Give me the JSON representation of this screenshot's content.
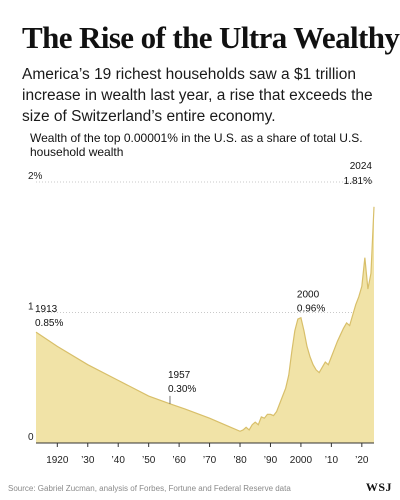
{
  "headline": "The Rise of the Ultra Wealthy",
  "dek": "America’s 19 richest households saw a $1 trillion increase in wealth last year, a rise that exceeds the size of Switzerland’s entire economy.",
  "source": "Source: Gabriel Zucman, analysis of Forbes, Fortune and Federal Reserve data",
  "logo": "WSJ",
  "colors": {
    "area_fill": "#f1e3a7",
    "area_line": "#d8bf6a",
    "grid": "#c9c9c9",
    "axis": "#333333"
  },
  "chart_data": {
    "type": "area",
    "title": "Wealth of the top 0.00001% in the U.S. as a share of total U.S. household wealth",
    "xlabel": "",
    "ylabel": "",
    "xlim": [
      1913,
      2024
    ],
    "ylim": [
      0,
      2
    ],
    "y_ticks": [
      {
        "value": 2,
        "label": "2%"
      },
      {
        "value": 1,
        "label": "1"
      },
      {
        "value": 0,
        "label": "0"
      }
    ],
    "x_ticks": [
      {
        "value": 1920,
        "label": "1920"
      },
      {
        "value": 1930,
        "label": "’30"
      },
      {
        "value": 1940,
        "label": "’40"
      },
      {
        "value": 1950,
        "label": "’50"
      },
      {
        "value": 1960,
        "label": "’60"
      },
      {
        "value": 1970,
        "label": "’70"
      },
      {
        "value": 1980,
        "label": "’80"
      },
      {
        "value": 1990,
        "label": "’90"
      },
      {
        "value": 2000,
        "label": "2000"
      },
      {
        "value": 2010,
        "label": "’10"
      },
      {
        "value": 2020,
        "label": "’20"
      }
    ],
    "x": [
      1913,
      1920,
      1930,
      1940,
      1950,
      1957,
      1962,
      1970,
      1976,
      1980,
      1981,
      1982,
      1983,
      1984,
      1985,
      1986,
      1987,
      1988,
      1989,
      1990,
      1991,
      1992,
      1993,
      1994,
      1995,
      1996,
      1997,
      1998,
      1999,
      2000,
      2001,
      2002,
      2003,
      2004,
      2005,
      2006,
      2007,
      2008,
      2009,
      2010,
      2011,
      2012,
      2013,
      2014,
      2015,
      2016,
      2017,
      2018,
      2019,
      2020,
      2021,
      2022,
      2023,
      2024
    ],
    "values": [
      0.85,
      0.74,
      0.6,
      0.48,
      0.36,
      0.3,
      0.26,
      0.19,
      0.13,
      0.09,
      0.1,
      0.12,
      0.1,
      0.14,
      0.16,
      0.14,
      0.2,
      0.19,
      0.22,
      0.22,
      0.21,
      0.24,
      0.3,
      0.36,
      0.42,
      0.52,
      0.7,
      0.86,
      0.95,
      0.96,
      0.86,
      0.74,
      0.66,
      0.6,
      0.56,
      0.54,
      0.58,
      0.62,
      0.6,
      0.66,
      0.72,
      0.78,
      0.83,
      0.88,
      0.92,
      0.9,
      0.98,
      1.06,
      1.12,
      1.2,
      1.42,
      1.18,
      1.3,
      1.81
    ],
    "annotations": [
      {
        "year": "1913",
        "value": "0.85%"
      },
      {
        "year": "1957",
        "value": "0.30%"
      },
      {
        "year": "2000",
        "value": "0.96%"
      },
      {
        "year": "2024",
        "value": "1.81%"
      }
    ],
    "grid": true,
    "legend": "none"
  }
}
